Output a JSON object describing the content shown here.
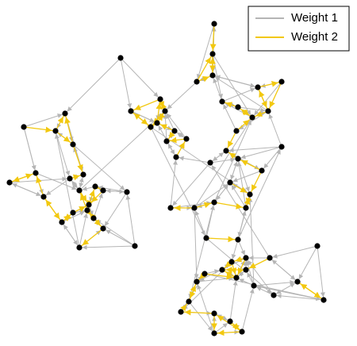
{
  "legend": {
    "items": [
      {
        "label": "Weight 1",
        "color": "#b5b5b5"
      },
      {
        "label": "Weight 2",
        "color": "#f2c80f"
      }
    ]
  }
}
